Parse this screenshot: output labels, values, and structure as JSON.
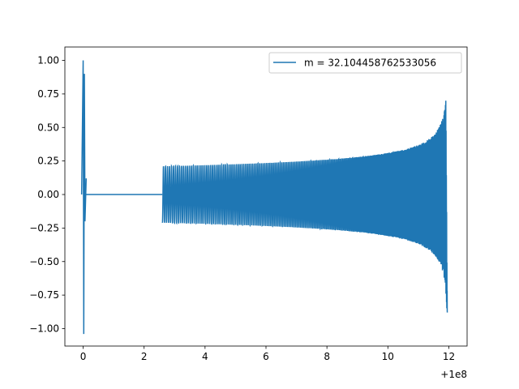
{
  "chart_data": {
    "type": "line",
    "title": "",
    "xlabel": "",
    "ylabel": "",
    "x_offset_label": "+1e8",
    "xlim": [
      -0.6,
      12.6
    ],
    "ylim": [
      -1.13,
      1.1
    ],
    "x_ticks": [
      0,
      2,
      4,
      6,
      8,
      10,
      12
    ],
    "x_tick_labels": [
      "0",
      "2",
      "4",
      "6",
      "8",
      "10",
      "12"
    ],
    "y_ticks": [
      1.0,
      0.75,
      0.5,
      0.25,
      0.0,
      -0.25,
      -0.5,
      -0.75,
      -1.0
    ],
    "y_tick_labels": [
      "1.00",
      "0.75",
      "0.50",
      "0.25",
      "0.00",
      "−0.25",
      "−0.50",
      "−0.75",
      "−1.00"
    ],
    "grid": false,
    "legend_position": "top-right",
    "series": [
      {
        "name": "m = 32.104458762533056",
        "color": "#1f77b4",
        "segments": [
          {
            "kind": "burst",
            "x": [
              -0.05,
              0.0,
              0.02,
              0.04,
              0.06,
              0.1
            ],
            "y": [
              0.0,
              1.0,
              -1.04,
              0.9,
              -0.2,
              0.12
            ]
          },
          {
            "kind": "flat",
            "x": [
              0.1,
              2.6
            ],
            "y": [
              0.0,
              0.0
            ]
          },
          {
            "kind": "chirp",
            "x_start": 2.6,
            "x_end": 11.95,
            "amp_start": 0.21,
            "amp_peak": 0.8,
            "amp_trough": -0.88,
            "cycles": 220
          }
        ]
      }
    ]
  }
}
